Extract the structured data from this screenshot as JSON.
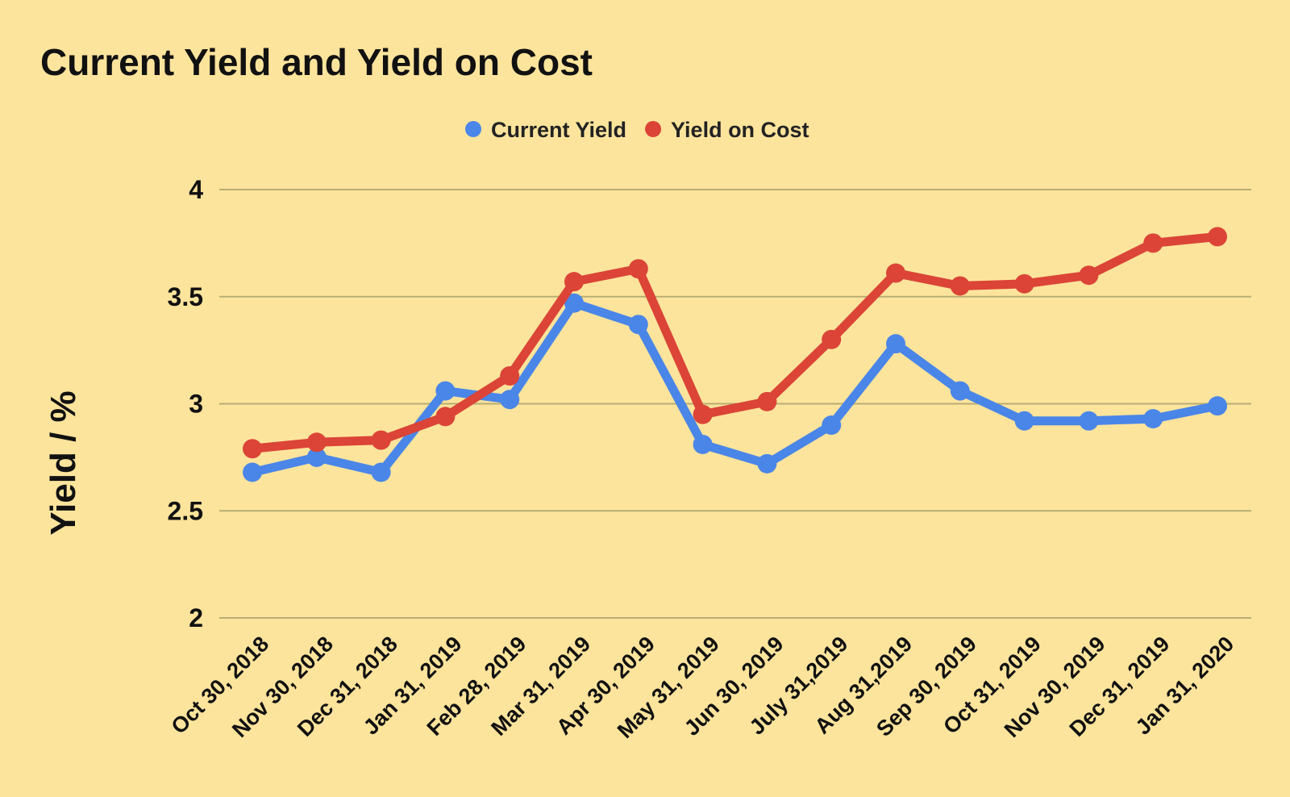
{
  "chart_data": {
    "type": "line",
    "title": "Current Yield and Yield on Cost",
    "xlabel": "",
    "ylabel": "Yield / %",
    "ylim": [
      2,
      4
    ],
    "yticks": [
      "2",
      "2.5",
      "3",
      "3.5",
      "4"
    ],
    "grid": true,
    "legend_position": "top-center",
    "categories": [
      "Oct 30, 2018",
      "Nov 30, 2018",
      "Dec 31, 2018",
      "Jan 31, 2019",
      "Feb 28, 2019",
      "Mar 31, 2019",
      "Apr 30, 2019",
      "May 31, 2019",
      "Jun 30, 2019",
      "July 31,2019",
      "Aug 31,2019",
      "Sep 30, 2019",
      "Oct 31, 2019",
      "Nov 30, 2019",
      "Dec 31, 2019",
      "Jan 31, 2020"
    ],
    "series": [
      {
        "name": "Current Yield",
        "color": "#4a86e8",
        "values": [
          2.68,
          2.75,
          2.68,
          3.06,
          3.02,
          3.47,
          3.37,
          2.81,
          2.72,
          2.9,
          3.28,
          3.06,
          2.92,
          2.92,
          2.93,
          2.99
        ]
      },
      {
        "name": "Yield on Cost",
        "color": "#db4437",
        "values": [
          2.79,
          2.82,
          2.83,
          2.94,
          3.13,
          3.57,
          3.63,
          2.95,
          3.01,
          3.3,
          3.61,
          3.55,
          3.56,
          3.6,
          3.75,
          3.78
        ]
      }
    ]
  },
  "colors": {
    "background": "#fde49c",
    "gridline": "#b9ad73"
  }
}
